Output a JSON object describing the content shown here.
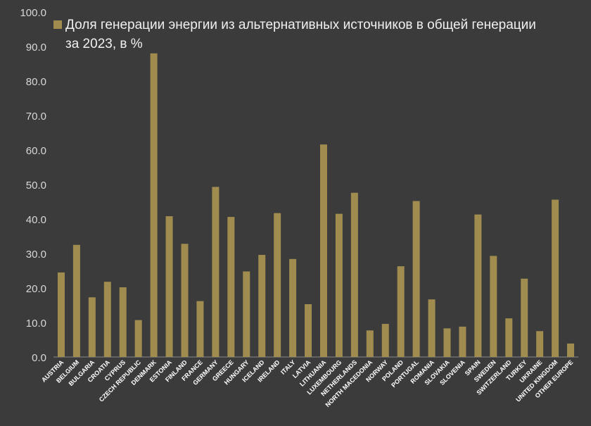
{
  "chart_data": {
    "type": "bar",
    "title": "",
    "xlabel": "",
    "ylabel": "",
    "ylim": [
      0,
      100
    ],
    "y_ticks": [
      "0.0",
      "10.0",
      "20.0",
      "30.0",
      "40.0",
      "50.0",
      "60.0",
      "70.0",
      "80.0",
      "90.0",
      "100.0"
    ],
    "grid": false,
    "legend": {
      "placement": "top-left",
      "line1": "Доля генерации энергии из альтернативных источников в общей генерации",
      "line2": "за 2023, в %"
    },
    "categories": [
      "AUSTRIA",
      "BELGIUM",
      "BULGARIA",
      "CROATIA",
      "CYPRUS",
      "CZECH REPUBLIC",
      "DENMARK",
      "ESTONIA",
      "FINLAND",
      "FRANCE",
      "GERMANY",
      "GREECE",
      "HUNGARY",
      "ICELAND",
      "IRELAND",
      "ITALY",
      "LATVIA",
      "LITHUANIA",
      "LUXEMBOURG",
      "NETHERLANDS",
      "NORTH MACEDONIA",
      "NORWAY",
      "POLAND",
      "PORTUGAL",
      "ROMANIA",
      "SLOVAKIA",
      "SLOVENIA",
      "SPAIN",
      "SWEDEN",
      "SWITZERLAND",
      "TURKEY",
      "UKRAINE",
      "UNITED KINGDOM",
      "OTHER EUROPE"
    ],
    "series": [
      {
        "name": "Доля генерации энергии из альтернативных источников в общей генерации за 2023, в %",
        "color": "#a08c4f",
        "values": [
          24.5,
          32.5,
          17.3,
          21.8,
          20.2,
          10.7,
          88.0,
          40.8,
          32.8,
          16.2,
          49.3,
          40.6,
          24.8,
          29.6,
          41.7,
          28.4,
          15.3,
          61.6,
          41.5,
          47.6,
          7.7,
          9.6,
          26.3,
          45.2,
          16.7,
          8.3,
          8.8,
          41.3,
          29.3,
          11.2,
          22.7,
          7.5,
          45.6,
          3.9
        ]
      }
    ]
  }
}
